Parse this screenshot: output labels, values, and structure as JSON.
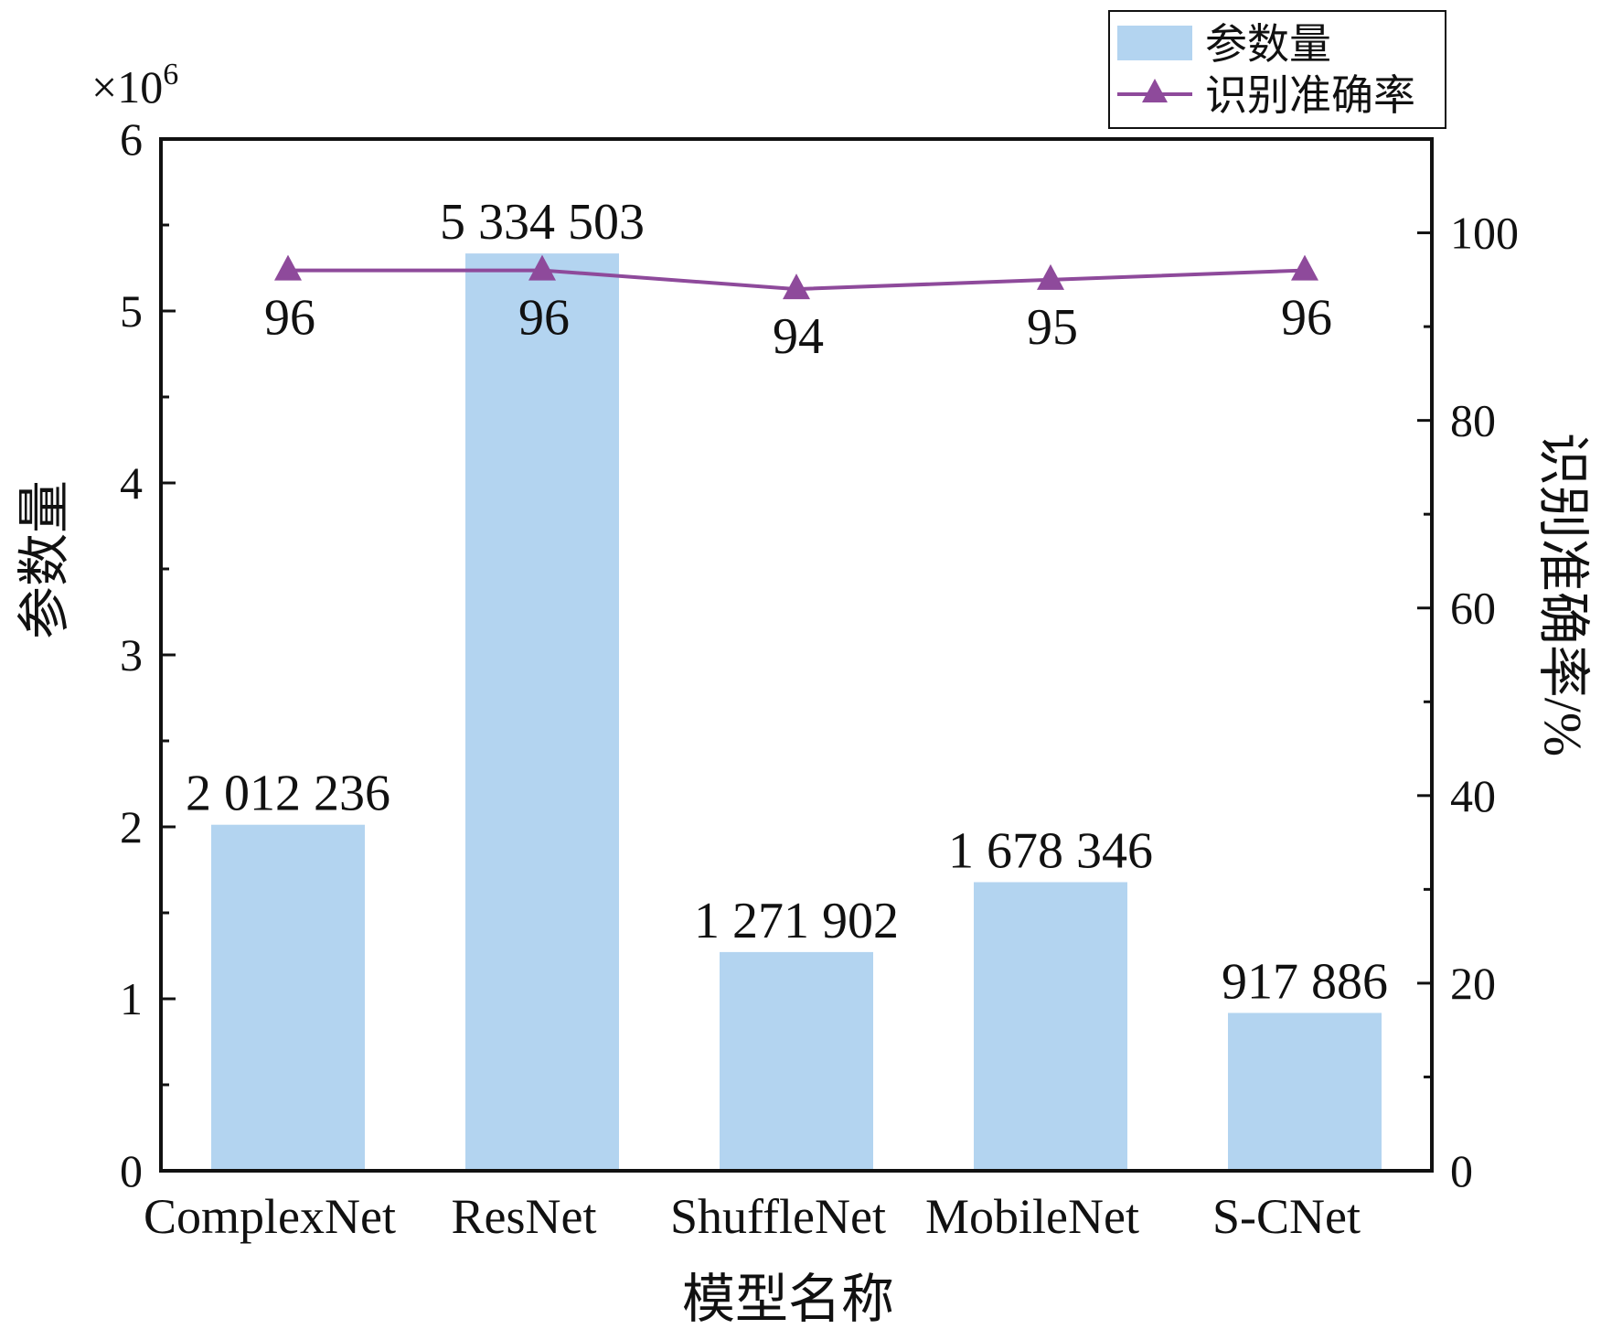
{
  "chart_data": {
    "type": "bar",
    "categories": [
      "ComplexNet",
      "ResNet",
      "ShuffleNet",
      "MobileNet",
      "S-CNet"
    ],
    "series": [
      {
        "name": "参数量",
        "type": "bar",
        "axis": "left",
        "values": [
          2012236,
          5334503,
          1271902,
          1678346,
          917886
        ],
        "labels": [
          "2 012 236",
          "5 334 503",
          "1 271 902",
          "1 678 346",
          "917 886"
        ],
        "color": "#b3d4f0"
      },
      {
        "name": "识别准确率",
        "type": "line",
        "marker": "triangle",
        "axis": "right",
        "values": [
          96,
          96,
          94,
          95,
          96
        ],
        "labels": [
          "96",
          "96",
          "94",
          "95",
          "96"
        ],
        "color": "#8e4a9b"
      }
    ],
    "xlabel": "模型名称",
    "ylabel": "参数量",
    "y2label": "识别准确率/%",
    "y_multiplier": "×10",
    "y_multiplier_exp": "6",
    "ylim": [
      0,
      6
    ],
    "y_ticks": [
      "0",
      "1",
      "2",
      "3",
      "4",
      "5",
      "6"
    ],
    "y2lim": [
      0,
      110
    ],
    "y2_ticks": [
      "0",
      "20",
      "40",
      "60",
      "80",
      "100"
    ],
    "legend_position": "top-right",
    "grid": false
  }
}
